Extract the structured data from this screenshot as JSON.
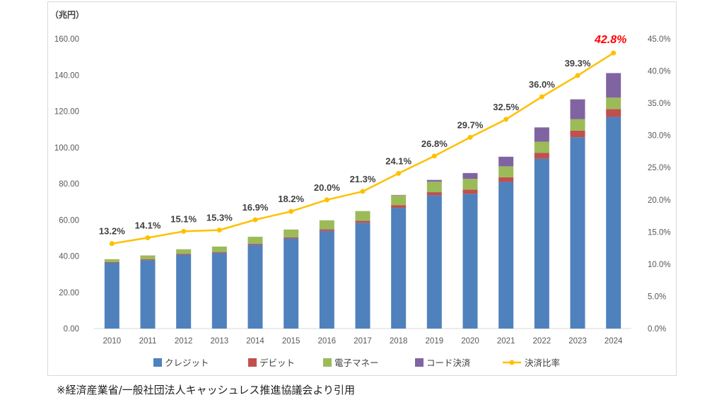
{
  "chart_data": {
    "type": "bar",
    "stacked": true,
    "y_unit_label": "（兆円）",
    "categories": [
      "2010",
      "2011",
      "2012",
      "2013",
      "2014",
      "2015",
      "2016",
      "2017",
      "2018",
      "2019",
      "2020",
      "2021",
      "2022",
      "2023",
      "2024"
    ],
    "series": [
      {
        "name": "クレジット",
        "color": "#4f81bd",
        "values": [
          36.3,
          37.8,
          40.8,
          41.8,
          46.3,
          49.8,
          53.9,
          58.4,
          66.7,
          73.6,
          74.4,
          81.0,
          93.8,
          105.7,
          116.9
        ]
      },
      {
        "name": "デビット",
        "color": "#c0504d",
        "values": [
          0.4,
          0.5,
          0.5,
          0.5,
          0.6,
          0.6,
          0.9,
          1.1,
          1.4,
          1.7,
          2.3,
          2.6,
          3.3,
          3.6,
          4.3
        ]
      },
      {
        "name": "電子マネー",
        "color": "#9bbb59",
        "values": [
          1.6,
          2.1,
          2.5,
          3.0,
          3.8,
          4.3,
          5.0,
          5.4,
          5.5,
          5.8,
          6.0,
          6.0,
          6.1,
          6.4,
          6.4
        ]
      },
      {
        "name": "コード決済",
        "color": "#8064a2",
        "values": [
          0,
          0,
          0,
          0,
          0,
          0,
          0,
          0,
          0.2,
          1.0,
          3.2,
          5.3,
          7.9,
          10.9,
          13.5
        ]
      }
    ],
    "line_series": {
      "name": "決済比率",
      "color": "#ffc000",
      "axis": "right",
      "values": [
        13.2,
        14.1,
        15.1,
        15.3,
        16.9,
        18.2,
        20.0,
        21.3,
        24.1,
        26.8,
        29.7,
        32.5,
        36.0,
        39.3,
        42.8
      ],
      "labels": [
        "13.2%",
        "14.1%",
        "15.1%",
        "15.3%",
        "16.9%",
        "18.2%",
        "20.0%",
        "21.3%",
        "24.1%",
        "26.8%",
        "29.7%",
        "32.5%",
        "36.0%",
        "39.3%",
        "42.8%"
      ],
      "highlight_last": true,
      "highlight_color": "#ff0000"
    },
    "ylim": [
      0,
      160
    ],
    "y_ticks": [
      "0.00",
      "20.00",
      "40.00",
      "60.00",
      "80.00",
      "100.00",
      "120.00",
      "140.00",
      "160.00"
    ],
    "y2lim": [
      0,
      45
    ],
    "y2_ticks": [
      "0.0%",
      "5.0%",
      "10.0%",
      "15.0%",
      "20.0%",
      "25.0%",
      "30.0%",
      "35.0%",
      "40.0%",
      "45.0%"
    ],
    "grid": false,
    "legend_position": "bottom"
  },
  "footer": {
    "source_note": "※経済産業省/一般社団法人キャッシュレス推進協議会より引用"
  }
}
